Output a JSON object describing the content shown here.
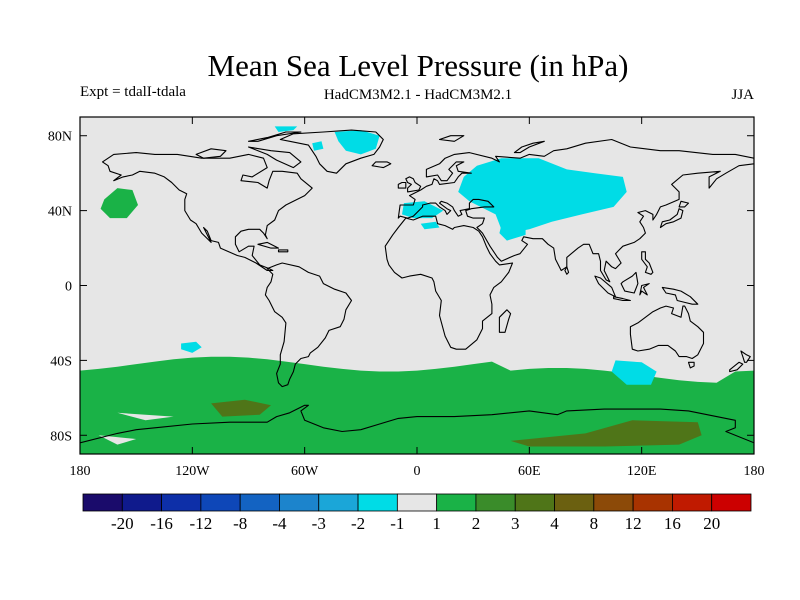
{
  "title": "Mean Sea Level Pressure (in hPa)",
  "expt": "Expt = tdalI-tdala",
  "subtitle": "HadCM3M2.1 - HadCM3M2.1",
  "season": "JJA",
  "map": {
    "projection": "cylindrical-equidistant",
    "lon_range": [
      -180,
      180
    ],
    "lat_range": [
      -90,
      90
    ],
    "background_color": "#e6e6e6",
    "x_ticks": [
      {
        "lon": -180,
        "label": "180"
      },
      {
        "lon": -120,
        "label": "120W"
      },
      {
        "lon": -60,
        "label": "60W"
      },
      {
        "lon": 0,
        "label": "0"
      },
      {
        "lon": 60,
        "label": "60E"
      },
      {
        "lon": 120,
        "label": "120E"
      },
      {
        "lon": 180,
        "label": "180"
      }
    ],
    "y_ticks": [
      {
        "lat": 80,
        "label": "80N"
      },
      {
        "lat": 40,
        "label": "40N"
      },
      {
        "lat": 0,
        "label": "0"
      },
      {
        "lat": -40,
        "label": "40S"
      },
      {
        "lat": -80,
        "label": "80S"
      }
    ]
  },
  "colorbar": {
    "colors": [
      "#1a0b6b",
      "#0f1a8c",
      "#0d2fa8",
      "#0e47b8",
      "#1363c2",
      "#1c84cc",
      "#1ba6d8",
      "#00dce6",
      "#e6e6e6",
      "#1ab247",
      "#3a8c2a",
      "#4f7518",
      "#6b6010",
      "#8c4a08",
      "#a83300",
      "#c01a00",
      "#cc0000"
    ],
    "labels": [
      "-20",
      "-16",
      "-12",
      "-8",
      "-4",
      "-3",
      "-2",
      "-1",
      "1",
      "2",
      "3",
      "4",
      "8",
      "12",
      "16",
      "20"
    ]
  },
  "chart_data": {
    "type": "map-contour",
    "variable": "Mean Sea Level Pressure difference (hPa)",
    "levels": [
      -20,
      -16,
      -12,
      -8,
      -4,
      -3,
      -2,
      -1,
      1,
      2,
      3,
      4,
      8,
      12,
      16,
      20
    ],
    "regions": [
      {
        "name": "North Pacific high anomaly",
        "category": "1 to 2",
        "color": "#1ab247",
        "polygon": [
          [
            -167,
            46
          ],
          [
            -160,
            52
          ],
          [
            -152,
            51
          ],
          [
            -149,
            43
          ],
          [
            -155,
            36
          ],
          [
            -164,
            36
          ],
          [
            -169,
            41
          ]
        ]
      },
      {
        "name": "Central Asia low anomaly",
        "category": "-2 to -1",
        "color": "#00dce6",
        "polygon": [
          [
            32,
            64
          ],
          [
            45,
            68
          ],
          [
            65,
            68
          ],
          [
            80,
            62
          ],
          [
            95,
            60
          ],
          [
            110,
            58
          ],
          [
            112,
            50
          ],
          [
            105,
            42
          ],
          [
            88,
            38
          ],
          [
            72,
            34
          ],
          [
            60,
            30
          ],
          [
            50,
            28
          ],
          [
            45,
            30
          ],
          [
            42,
            38
          ],
          [
            28,
            45
          ],
          [
            22,
            50
          ],
          [
            25,
            58
          ]
        ]
      },
      {
        "name": "Mediterranean low anomaly",
        "category": "-2 to -1",
        "color": "#00dce6",
        "polygon": [
          [
            -7,
            44
          ],
          [
            4,
            45
          ],
          [
            10,
            42
          ],
          [
            14,
            40
          ],
          [
            8,
            36
          ],
          [
            -2,
            36
          ],
          [
            -8,
            38
          ]
        ]
      },
      {
        "name": "North Africa low anomaly",
        "category": "-2 to -1",
        "color": "#00dce6",
        "polygon": [
          [
            2,
            33
          ],
          [
            10,
            34
          ],
          [
            12,
            31
          ],
          [
            4,
            30
          ]
        ]
      },
      {
        "name": "Greenland low anomaly",
        "category": "-2 to -1",
        "color": "#00dce6",
        "polygon": [
          [
            -44,
            82
          ],
          [
            -30,
            83
          ],
          [
            -20,
            80
          ],
          [
            -22,
            73
          ],
          [
            -30,
            70
          ],
          [
            -38,
            72
          ],
          [
            -42,
            77
          ]
        ]
      },
      {
        "name": "Baffin low anomaly",
        "category": "-2 to -1",
        "color": "#00dce6",
        "polygon": [
          [
            -56,
            76
          ],
          [
            -51,
            77
          ],
          [
            -50,
            73
          ],
          [
            -55,
            72
          ]
        ]
      },
      {
        "name": "Ellesmere low anomaly",
        "category": "-2 to -1",
        "color": "#00dce6",
        "polygon": [
          [
            -76,
            85
          ],
          [
            -64,
            85
          ],
          [
            -66,
            83
          ],
          [
            -74,
            82
          ]
        ]
      },
      {
        "name": "Arabian low anomaly",
        "category": "-2 to -1",
        "color": "#00dce6",
        "polygon": [
          [
            45,
            32
          ],
          [
            58,
            34
          ],
          [
            58,
            27
          ],
          [
            48,
            24
          ],
          [
            44,
            28
          ]
        ]
      },
      {
        "name": "South Pacific low anomaly",
        "category": "-2 to -1",
        "color": "#00dce6",
        "polygon": [
          [
            -126,
            -31
          ],
          [
            -118,
            -30
          ],
          [
            -115,
            -33
          ],
          0,
          [
            -120,
            -36
          ],
          [
            -126,
            -34
          ]
        ]
      },
      {
        "name": "South Indian low anomaly",
        "category": "-2 to -1",
        "color": "#00dce6",
        "polygon": [
          [
            106,
            -40
          ],
          [
            120,
            -41
          ],
          [
            128,
            -46
          ],
          [
            125,
            -53
          ],
          [
            112,
            -53
          ],
          [
            104,
            -46
          ]
        ]
      },
      {
        "name": "Southern Ocean high anomaly",
        "category": "1 to 2",
        "color": "#1ab247",
        "polygon": []
      },
      {
        "name": "Amundsen Sea anomaly",
        "category": "3 to 4",
        "color": "#4f7518",
        "polygon": [
          [
            -110,
            -63
          ],
          [
            -92,
            -61
          ],
          [
            -78,
            -64
          ],
          [
            -84,
            -69
          ],
          [
            -104,
            -70
          ]
        ]
      },
      {
        "name": "East Antarctic anomaly",
        "category": "3 to 4",
        "color": "#4f7518",
        "polygon": [
          [
            50,
            -83
          ],
          [
            90,
            -79
          ],
          [
            115,
            -72
          ],
          [
            150,
            -73
          ],
          [
            152,
            -80
          ],
          [
            140,
            -85
          ],
          [
            100,
            -86
          ],
          [
            60,
            -86
          ]
        ]
      }
    ]
  }
}
